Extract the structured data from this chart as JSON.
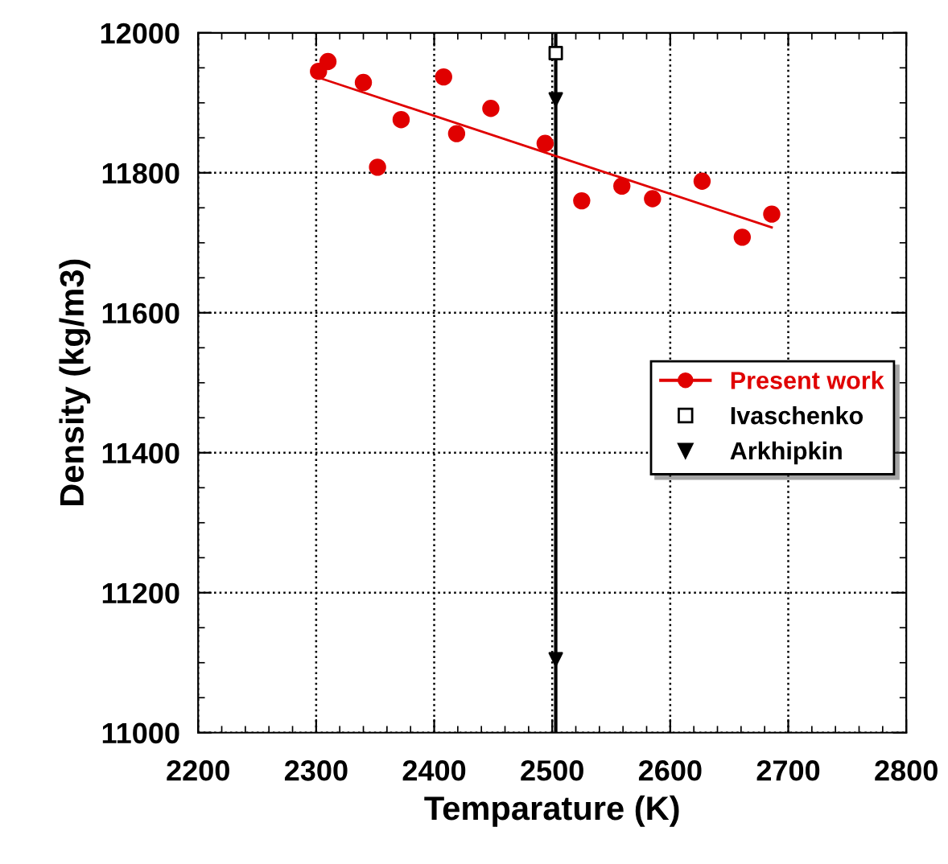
{
  "chart_data": {
    "type": "scatter",
    "xlabel": "Temparature (K)",
    "ylabel": "Density (kg/m3)",
    "xlim": [
      2200,
      2800
    ],
    "xticks": [
      2200,
      2300,
      2400,
      2500,
      2600,
      2700,
      2800
    ],
    "ylim": [
      11000,
      12000
    ],
    "yticks": [
      11000,
      11200,
      11400,
      11600,
      11800,
      12000
    ],
    "grid": true,
    "legend": "right",
    "series": [
      {
        "name": "Present work",
        "color": "#e00000",
        "marker": "circle",
        "x": [
          2302,
          2310,
          2340,
          2352,
          2372,
          2408,
          2419,
          2448,
          2494,
          2525,
          2559,
          2585,
          2627,
          2661,
          2686
        ],
        "values": [
          11945,
          11959,
          11929,
          11808,
          11876,
          11937,
          11856,
          11892,
          11842,
          11760,
          11781,
          11763,
          11788,
          11708,
          11741
        ]
      },
      {
        "type": "line",
        "color": "#e00000",
        "marker": "none",
        "line_style": "solid",
        "x": [
          2302,
          2686
        ],
        "values": [
          11936,
          11722
        ]
      },
      {
        "name": "Ivaschenko",
        "color": "#000000",
        "marker": "square",
        "x": [
          2503
        ],
        "values": [
          11971
        ]
      },
      {
        "name": "Arkhipkin",
        "color": "#000000",
        "marker": "triangle",
        "x": [
          2503,
          2503
        ],
        "values": [
          11905,
          11105
        ]
      }
    ],
    "ref_lines": [
      {
        "axis": "x",
        "value": 2503,
        "color": "#000000",
        "line_style": "solid"
      }
    ]
  }
}
